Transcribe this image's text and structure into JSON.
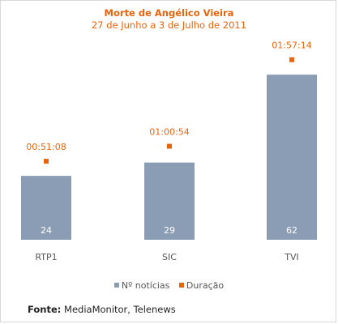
{
  "chart_data": {
    "type": "bar",
    "title": "Morte de Angélico Vieira",
    "subtitle": "27 de Junho a 3 de Julho de 2011",
    "categories": [
      "RTP1",
      "SIC",
      "TVI"
    ],
    "series": [
      {
        "name": "Nº notícias",
        "type": "bar",
        "values": [
          24,
          29,
          62
        ],
        "color": "#8a9db5"
      },
      {
        "name": "Duração",
        "type": "marker",
        "values": [
          "00:51:08",
          "01:00:54",
          "01:57:14"
        ],
        "color": "#e8640c"
      }
    ],
    "ylim": [
      0,
      80
    ],
    "grid": false,
    "legend_position": "bottom"
  },
  "source": {
    "label": "Fonte:",
    "text": "MediaMonitor, Telenews"
  }
}
